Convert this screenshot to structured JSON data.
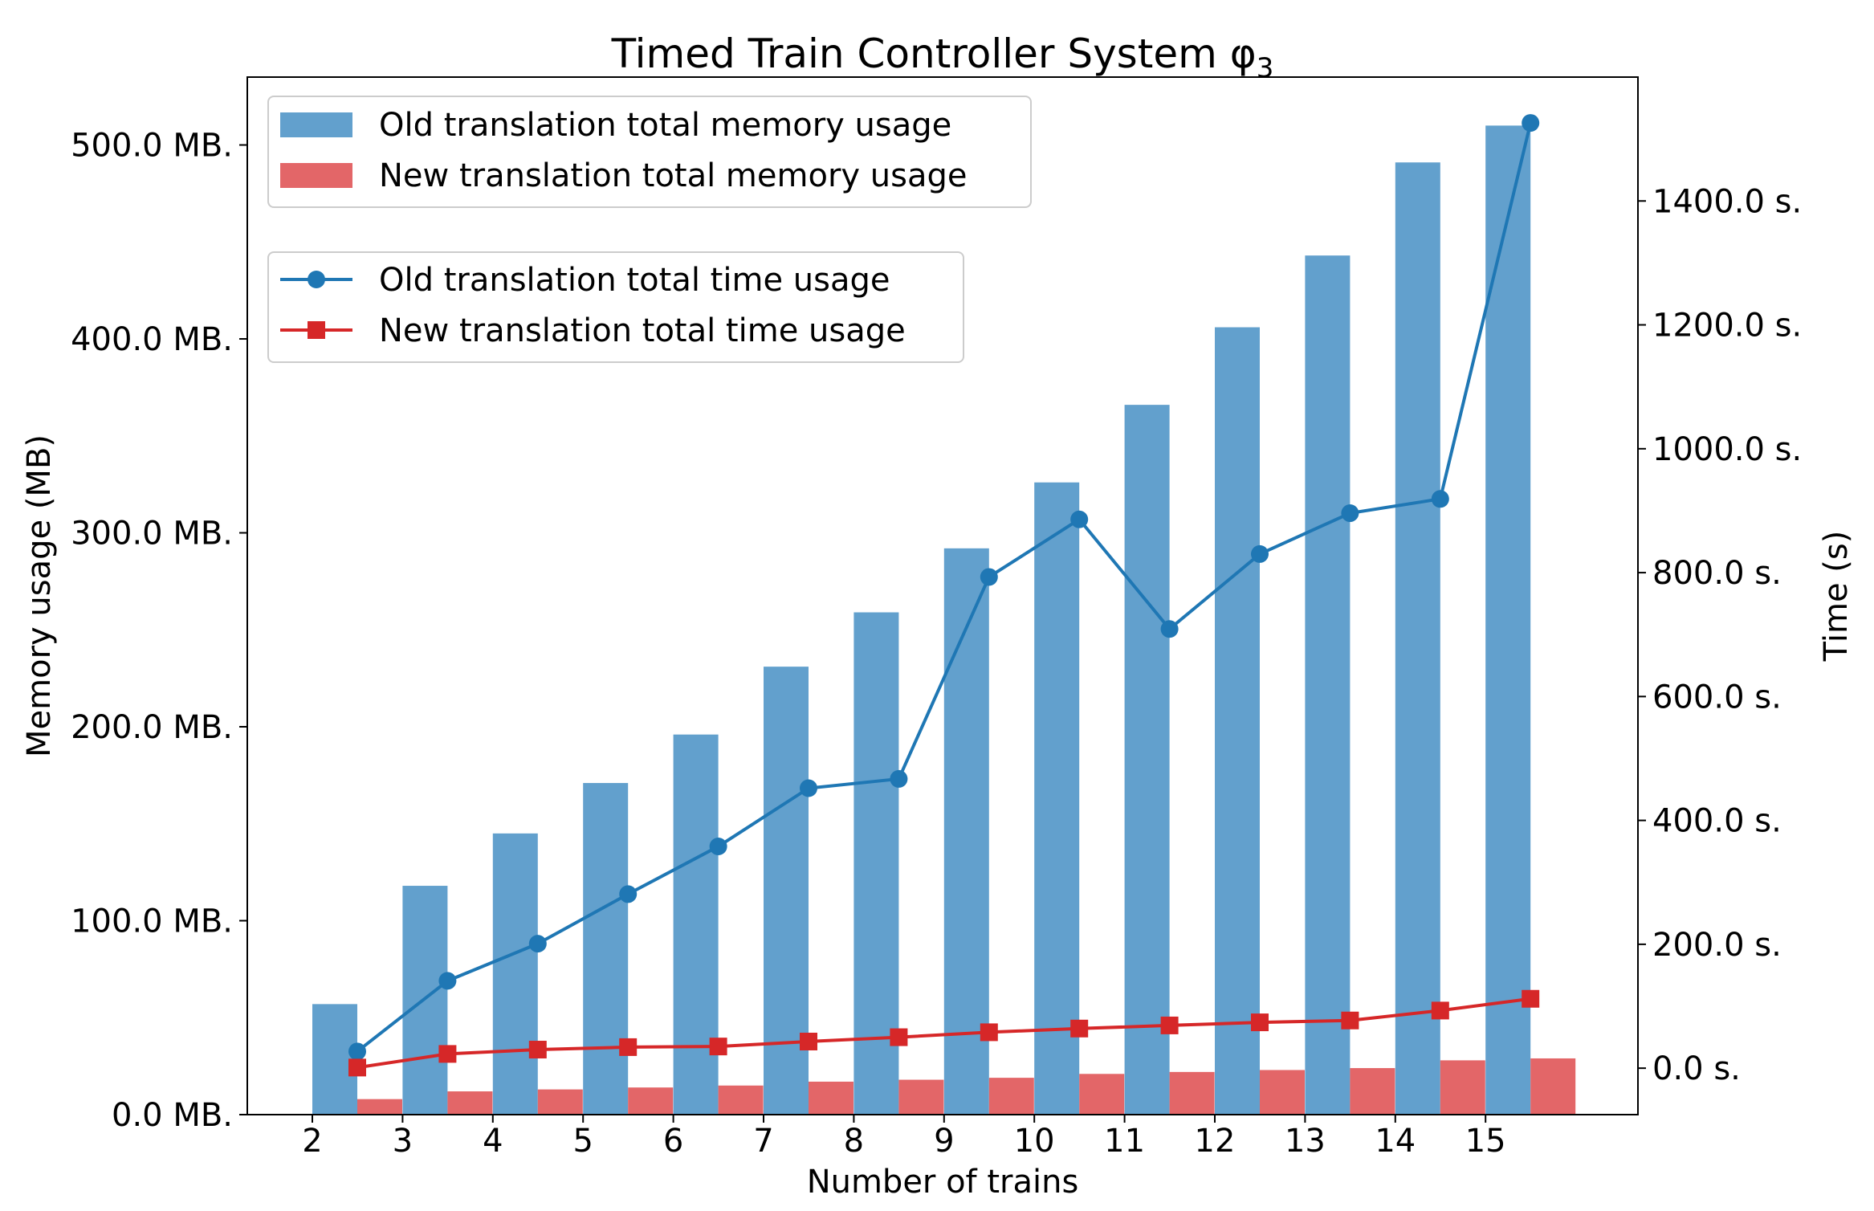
{
  "chart_data": {
    "type": "bar+line",
    "title": "Timed Train Controller System φ",
    "title_subscript": "3",
    "xlabel": "Number of trains",
    "ylabel_left": "Memory usage (MB)",
    "ylabel_right": "Time (s)",
    "categories": [
      "2",
      "3",
      "4",
      "5",
      "6",
      "7",
      "8",
      "9",
      "10",
      "11",
      "12",
      "13",
      "14",
      "15"
    ],
    "ylim_left": [
      0,
      535
    ],
    "ylim_right": [
      -75,
      1600
    ],
    "yticks_left": [
      0,
      100,
      200,
      300,
      400,
      500
    ],
    "yticks_right": [
      0,
      200,
      400,
      600,
      800,
      1000,
      1200,
      1400
    ],
    "ytick_labels_left": [
      "0.0 MB.",
      "100.0 MB.",
      "200.0 MB.",
      "300.0 MB.",
      "400.0 MB.",
      "500.0 MB."
    ],
    "ytick_labels_right": [
      "0.0 s.",
      "200.0 s.",
      "400.0 s.",
      "600.0 s.",
      "800.0 s.",
      "1000.0 s.",
      "1200.0 s.",
      "1400.0 s."
    ],
    "bar_series": [
      {
        "name": "Old translation total memory usage",
        "color": "#62a0cd",
        "values": [
          57,
          118,
          145,
          171,
          196,
          231,
          259,
          292,
          326,
          366,
          406,
          443,
          491,
          510
        ]
      },
      {
        "name": "New translation total memory usage",
        "color": "#e36668",
        "values": [
          8,
          12,
          13,
          14,
          15,
          17,
          18,
          19,
          21,
          22,
          23,
          24,
          28,
          29
        ]
      }
    ],
    "line_series": [
      {
        "name": "Old translation total time usage",
        "color": "#1f77b4",
        "marker": "circle",
        "values": [
          27,
          141,
          201,
          281,
          358,
          452,
          467,
          793,
          886,
          709,
          830,
          896,
          919,
          1526
        ]
      },
      {
        "name": "New translation total time usage",
        "color": "#d62728",
        "marker": "square",
        "values": [
          1,
          23,
          30,
          34,
          35,
          43,
          50,
          58,
          64,
          69,
          74,
          77,
          93,
          112
        ]
      }
    ],
    "legend_placement": "top-left"
  }
}
